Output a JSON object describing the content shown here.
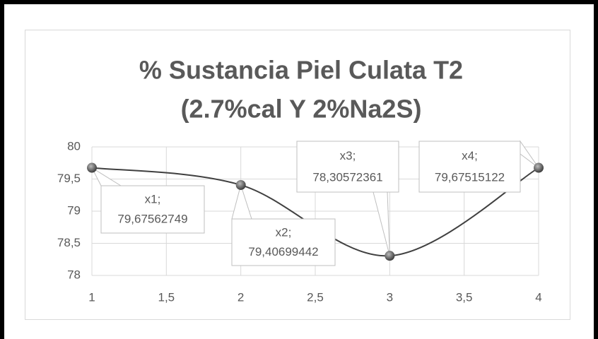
{
  "chart_data": {
    "type": "scatter",
    "title": [
      "% Sustancia Piel Culata T2",
      "(2.7%cal Y 2%Na2S)"
    ],
    "x": [
      1,
      2,
      3,
      4
    ],
    "values": [
      79.67562749,
      79.40699442,
      78.30572361,
      79.67515122
    ],
    "point_labels": [
      "x1;",
      "x2;",
      "x3;",
      "x4;"
    ],
    "value_labels": [
      "79,67562749",
      "79,40699442",
      "78,30572361",
      "79,67515122"
    ],
    "color": "#404040",
    "xlim": [
      1,
      4
    ],
    "xticks": [
      1,
      {
        "value": 1.5,
        "label": "1,5"
      },
      2,
      {
        "value": 2.5,
        "label": "2,5"
      },
      3,
      {
        "value": 3.5,
        "label": "3,5"
      },
      4
    ],
    "ylim": [
      78,
      80
    ],
    "yticks": [
      78,
      {
        "value": 78.5,
        "label": "78,5"
      },
      79,
      {
        "value": 79.5,
        "label": "79,5"
      },
      80
    ],
    "grid": true,
    "smooth": true
  }
}
